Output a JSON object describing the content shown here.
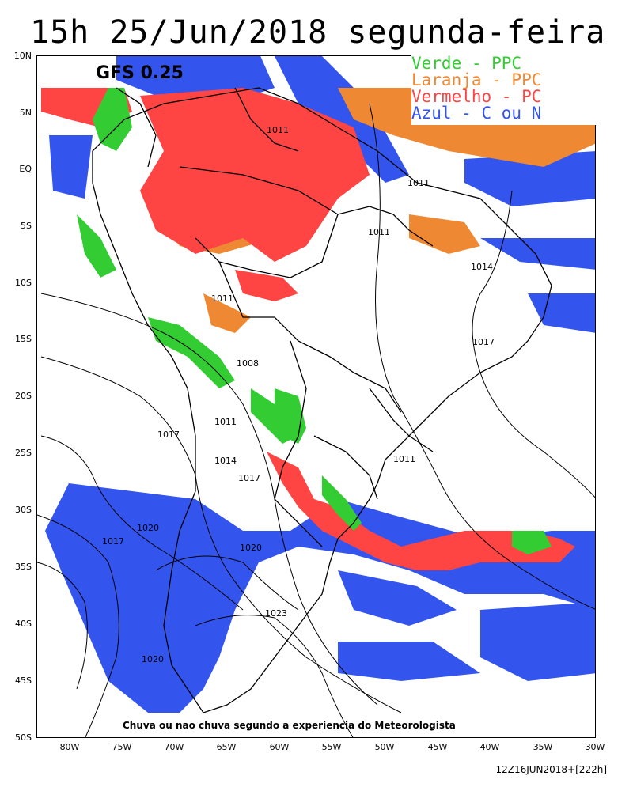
{
  "title": "15h 25/Jun/2018 segunda-feira",
  "model_label": "GFS 0.25",
  "legend": [
    {
      "text": "Verde - PPC",
      "color": "#33cc33"
    },
    {
      "text": "Laranja - PPC",
      "color": "#ee8833"
    },
    {
      "text": "Vermelho - PC",
      "color": "#ff4444"
    },
    {
      "text": "Azul - C ou N",
      "color": "#3355ee"
    }
  ],
  "caption": "Chuva ou nao chuva segundo a experiencia do Meteorologista",
  "run_info": "12Z16JUN2018+[222h]",
  "lat_labels": [
    "10N",
    "5N",
    "EQ",
    "5S",
    "10S",
    "15S",
    "20S",
    "25S",
    "30S",
    "35S",
    "40S",
    "45S",
    "50S"
  ],
  "lon_labels": [
    "80W",
    "75W",
    "70W",
    "65W",
    "60W",
    "55W",
    "50W",
    "45W",
    "40W",
    "35W",
    "30W"
  ],
  "isobar_labels": [
    "1011",
    "1011",
    "1011",
    "1014",
    "1011",
    "1017",
    "1008",
    "1011",
    "1017",
    "1014",
    "1011",
    "1017",
    "1020",
    "1017",
    "1020",
    "1023",
    "1020"
  ]
}
